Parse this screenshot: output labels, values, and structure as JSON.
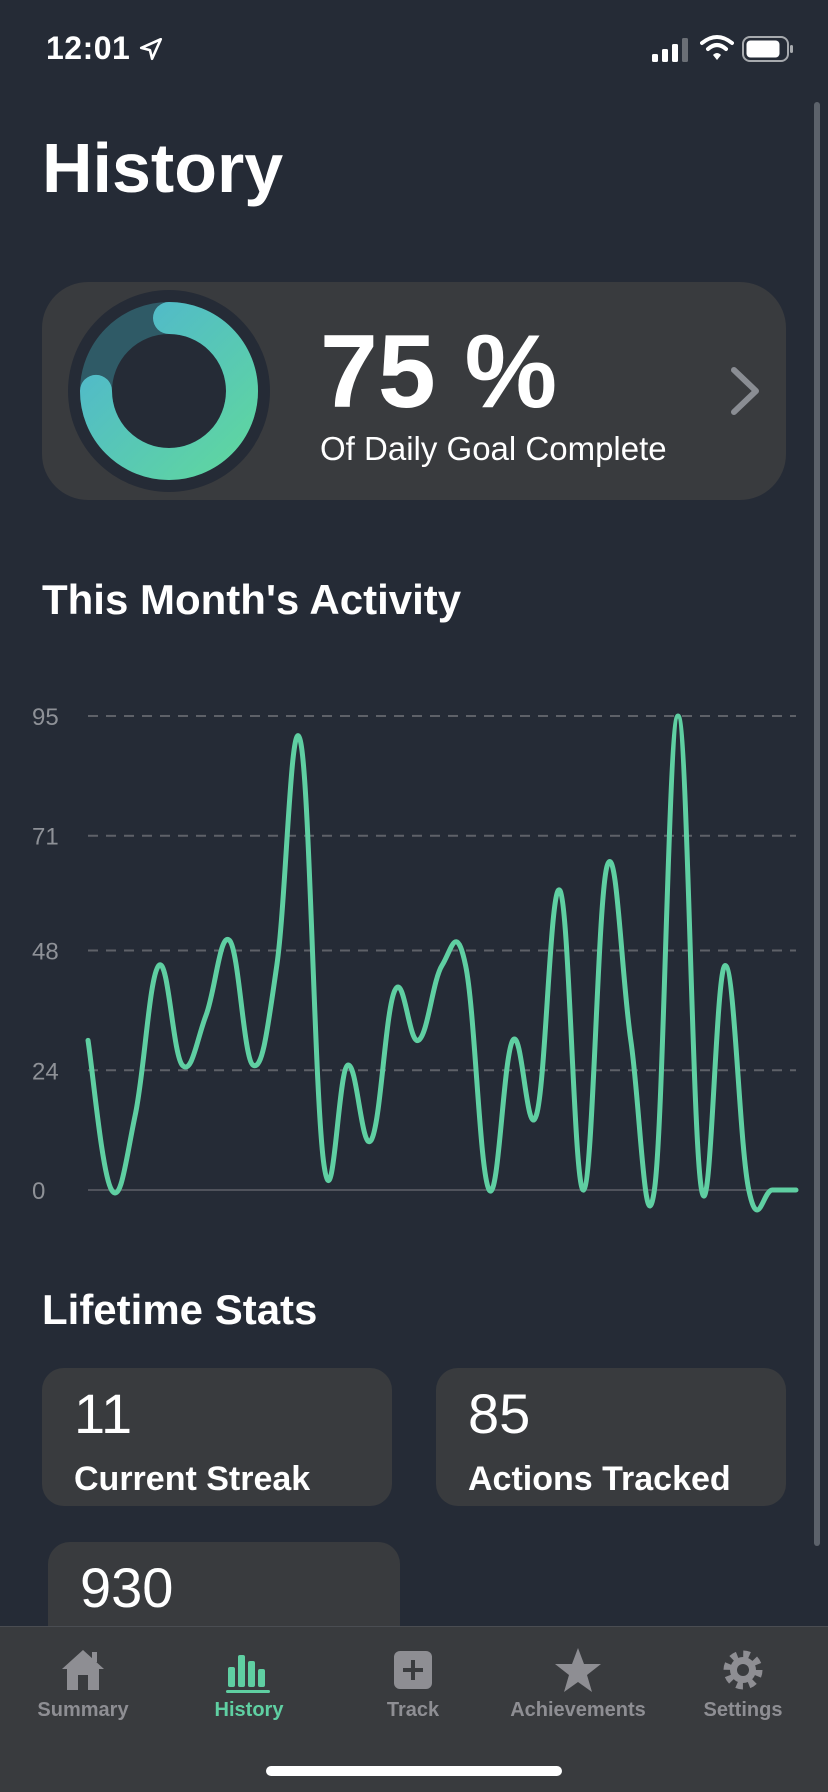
{
  "status_bar": {
    "time": "12:01"
  },
  "page": {
    "title": "History"
  },
  "goal_card": {
    "value": "75 %",
    "label": "Of Daily Goal Complete",
    "progress": 0.75
  },
  "activity": {
    "title": "This Month's Activity"
  },
  "chart_data": {
    "type": "line",
    "x": [
      1,
      2,
      3,
      4,
      5,
      6,
      7,
      8,
      9,
      10,
      11,
      12,
      13,
      14,
      15,
      16,
      17,
      18,
      19,
      20,
      21,
      22,
      23,
      24,
      25,
      26,
      27,
      28,
      29,
      30,
      31
    ],
    "values": [
      30,
      0,
      15,
      45,
      25,
      35,
      50,
      25,
      45,
      90,
      5,
      25,
      10,
      40,
      30,
      45,
      45,
      0,
      30,
      15,
      60,
      0,
      65,
      30,
      0,
      95,
      0,
      45,
      0,
      0,
      0
    ],
    "y_ticks": [
      "95",
      "71",
      "48",
      "24",
      "0"
    ],
    "ylim": [
      0,
      95
    ],
    "grid": true,
    "line_color": "#5fcfa2"
  },
  "lifetime": {
    "title": "Lifetime Stats",
    "stats": [
      {
        "value": "11",
        "label": "Current Streak"
      },
      {
        "value": "85",
        "label": "Actions Tracked"
      },
      {
        "value": "930",
        "label": ""
      }
    ]
  },
  "tab_bar": {
    "tabs": [
      {
        "label": "Summary",
        "icon": "house-icon"
      },
      {
        "label": "History",
        "icon": "bar-chart-icon",
        "active": true
      },
      {
        "label": "Track",
        "icon": "plus-square-icon"
      },
      {
        "label": "Achievements",
        "icon": "star-icon"
      },
      {
        "label": "Settings",
        "icon": "gear-icon"
      }
    ]
  },
  "colors": {
    "background": "#252b36",
    "card": "#393b3e",
    "accent": "#5fcfa2",
    "ring_start": "#4fb6cf",
    "inactive_tab": "#8e8e93"
  }
}
